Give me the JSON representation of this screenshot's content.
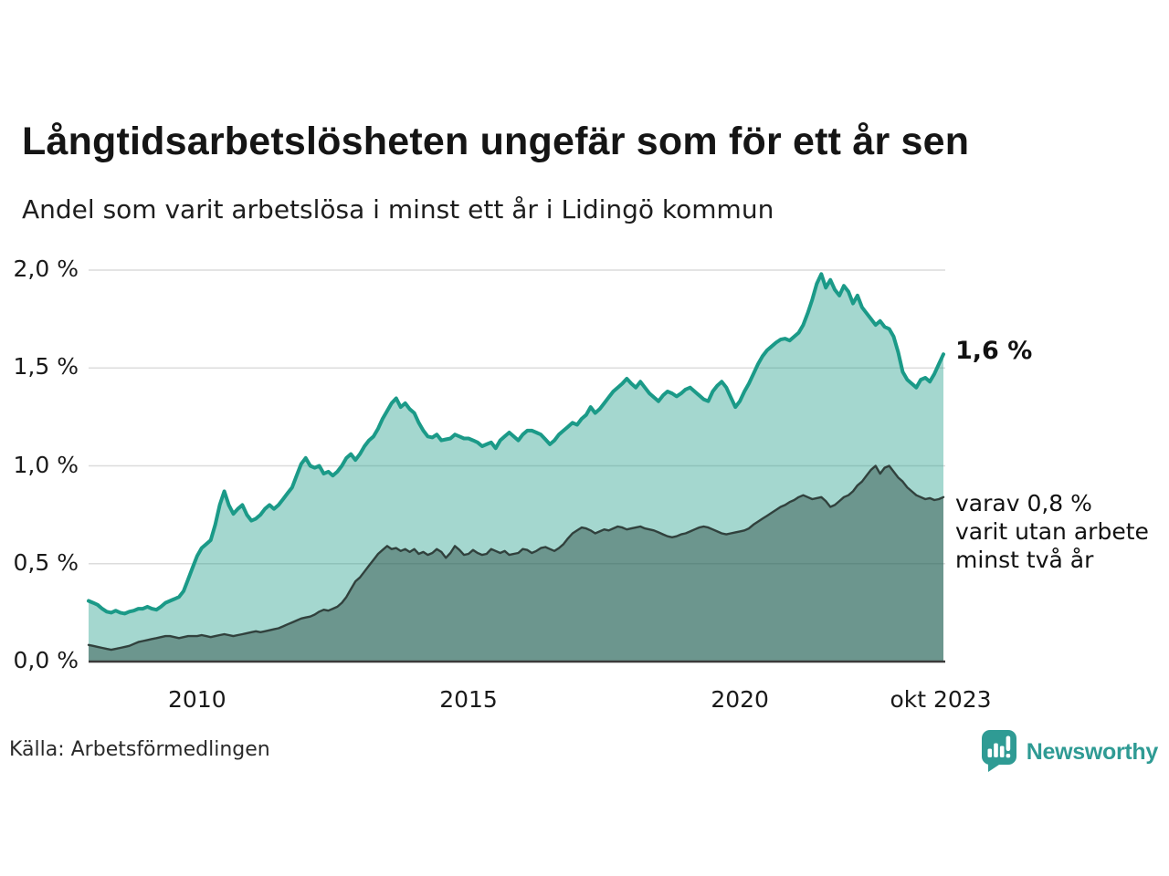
{
  "header": {
    "title": "Långtidsarbetslösheten ungefär som för ett år sen",
    "subtitle": "Andel som varit arbetslösa i minst ett år i Lidingö kommun"
  },
  "chart_data": {
    "type": "area",
    "title": "Långtidsarbetslösheten ungefär som för ett år sen",
    "subtitle": "Andel som varit arbetslösa i minst ett år i Lidingö kommun",
    "unit": "%",
    "grid": true,
    "xlim": [
      2008.0,
      2023.75
    ],
    "ylim": [
      0,
      2.0
    ],
    "colors": {
      "series_total_line": "#1b9a88",
      "series_total_fill": "rgba(27,154,136,0.40)",
      "series_two_years_line": "#31413d",
      "series_two_years_fill": "rgba(40,70,62,0.45)",
      "gridline": "#dcdcdc",
      "zero_axis": "#3a3a3a",
      "brand_teal": "#2f9b94"
    },
    "y_ticks": [
      {
        "label": "2,0 %",
        "value": 2.0
      },
      {
        "label": "1,5 %",
        "value": 1.5
      },
      {
        "label": "1,0 %",
        "value": 1.0
      },
      {
        "label": "0,5 %",
        "value": 0.5
      },
      {
        "label": "0,0 %",
        "value": 0.0
      }
    ],
    "x_ticks": [
      {
        "label": "2010",
        "year": 2010
      },
      {
        "label": "2015",
        "year": 2015
      },
      {
        "label": "2020",
        "year": 2020
      },
      {
        "label": "okt 2023",
        "year": 2023.7
      }
    ],
    "series": [
      {
        "name": "Andel som varit arbetslösa i minst ett år",
        "start_year": 2008.0,
        "step_years": 0.0833333,
        "values": [
          0.31,
          0.3,
          0.29,
          0.27,
          0.255,
          0.25,
          0.26,
          0.25,
          0.245,
          0.255,
          0.26,
          0.27,
          0.27,
          0.28,
          0.27,
          0.265,
          0.28,
          0.3,
          0.31,
          0.32,
          0.33,
          0.36,
          0.42,
          0.48,
          0.54,
          0.58,
          0.6,
          0.62,
          0.7,
          0.8,
          0.87,
          0.8,
          0.755,
          0.78,
          0.8,
          0.75,
          0.72,
          0.73,
          0.75,
          0.78,
          0.8,
          0.78,
          0.8,
          0.83,
          0.86,
          0.89,
          0.95,
          1.01,
          1.04,
          1.0,
          0.99,
          1.0,
          0.96,
          0.97,
          0.95,
          0.97,
          1.0,
          1.04,
          1.06,
          1.03,
          1.06,
          1.1,
          1.13,
          1.15,
          1.19,
          1.24,
          1.28,
          1.32,
          1.345,
          1.3,
          1.32,
          1.29,
          1.27,
          1.22,
          1.18,
          1.15,
          1.145,
          1.16,
          1.13,
          1.135,
          1.14,
          1.16,
          1.15,
          1.14,
          1.14,
          1.13,
          1.12,
          1.1,
          1.11,
          1.12,
          1.09,
          1.13,
          1.15,
          1.17,
          1.15,
          1.13,
          1.16,
          1.18,
          1.18,
          1.17,
          1.16,
          1.135,
          1.11,
          1.13,
          1.16,
          1.18,
          1.2,
          1.22,
          1.21,
          1.24,
          1.26,
          1.3,
          1.27,
          1.29,
          1.32,
          1.35,
          1.38,
          1.4,
          1.42,
          1.445,
          1.42,
          1.4,
          1.43,
          1.4,
          1.37,
          1.35,
          1.33,
          1.36,
          1.38,
          1.37,
          1.355,
          1.37,
          1.39,
          1.4,
          1.38,
          1.36,
          1.34,
          1.33,
          1.38,
          1.41,
          1.43,
          1.4,
          1.35,
          1.3,
          1.33,
          1.38,
          1.42,
          1.47,
          1.52,
          1.56,
          1.59,
          1.61,
          1.63,
          1.645,
          1.65,
          1.64,
          1.66,
          1.68,
          1.72,
          1.78,
          1.85,
          1.93,
          1.98,
          1.91,
          1.95,
          1.9,
          1.87,
          1.92,
          1.89,
          1.83,
          1.87,
          1.81,
          1.78,
          1.75,
          1.72,
          1.74,
          1.71,
          1.7,
          1.66,
          1.58,
          1.48,
          1.44,
          1.42,
          1.4,
          1.44,
          1.45,
          1.43,
          1.47,
          1.52,
          1.57
        ]
      },
      {
        "name": "varav utan arbete minst två år",
        "start_year": 2008.0,
        "step_years": 0.0833333,
        "values": [
          0.085,
          0.08,
          0.075,
          0.07,
          0.065,
          0.06,
          0.065,
          0.07,
          0.075,
          0.08,
          0.09,
          0.1,
          0.105,
          0.11,
          0.115,
          0.12,
          0.125,
          0.13,
          0.13,
          0.125,
          0.12,
          0.125,
          0.13,
          0.13,
          0.13,
          0.135,
          0.13,
          0.125,
          0.13,
          0.135,
          0.14,
          0.135,
          0.13,
          0.135,
          0.14,
          0.145,
          0.15,
          0.155,
          0.15,
          0.155,
          0.16,
          0.165,
          0.17,
          0.18,
          0.19,
          0.2,
          0.21,
          0.22,
          0.225,
          0.23,
          0.24,
          0.255,
          0.265,
          0.26,
          0.27,
          0.28,
          0.3,
          0.33,
          0.37,
          0.41,
          0.43,
          0.46,
          0.49,
          0.52,
          0.55,
          0.57,
          0.59,
          0.575,
          0.58,
          0.565,
          0.575,
          0.56,
          0.575,
          0.55,
          0.56,
          0.545,
          0.555,
          0.575,
          0.56,
          0.53,
          0.555,
          0.59,
          0.57,
          0.545,
          0.55,
          0.57,
          0.555,
          0.545,
          0.55,
          0.575,
          0.565,
          0.555,
          0.565,
          0.545,
          0.55,
          0.555,
          0.575,
          0.57,
          0.555,
          0.565,
          0.58,
          0.585,
          0.575,
          0.565,
          0.58,
          0.6,
          0.63,
          0.655,
          0.67,
          0.685,
          0.68,
          0.67,
          0.655,
          0.665,
          0.675,
          0.67,
          0.68,
          0.69,
          0.685,
          0.675,
          0.68,
          0.685,
          0.69,
          0.68,
          0.675,
          0.67,
          0.66,
          0.65,
          0.64,
          0.635,
          0.64,
          0.65,
          0.655,
          0.665,
          0.675,
          0.685,
          0.69,
          0.685,
          0.675,
          0.665,
          0.655,
          0.65,
          0.655,
          0.66,
          0.665,
          0.67,
          0.68,
          0.7,
          0.715,
          0.73,
          0.745,
          0.76,
          0.775,
          0.79,
          0.8,
          0.815,
          0.825,
          0.84,
          0.85,
          0.84,
          0.83,
          0.835,
          0.84,
          0.82,
          0.79,
          0.8,
          0.82,
          0.84,
          0.85,
          0.87,
          0.9,
          0.92,
          0.95,
          0.98,
          1.0,
          0.96,
          0.99,
          1.0,
          0.97,
          0.94,
          0.92,
          0.89,
          0.87,
          0.85,
          0.84,
          0.83,
          0.835,
          0.825,
          0.83,
          0.84
        ]
      }
    ],
    "annotations": {
      "latest_total": "1,6 %",
      "secondary_lines": [
        "varav 0,8 %",
        "varit utan arbete",
        "minst två år"
      ]
    }
  },
  "footer": {
    "source": "Källa: Arbetsförmedlingen",
    "brand": "Newsworthy"
  }
}
